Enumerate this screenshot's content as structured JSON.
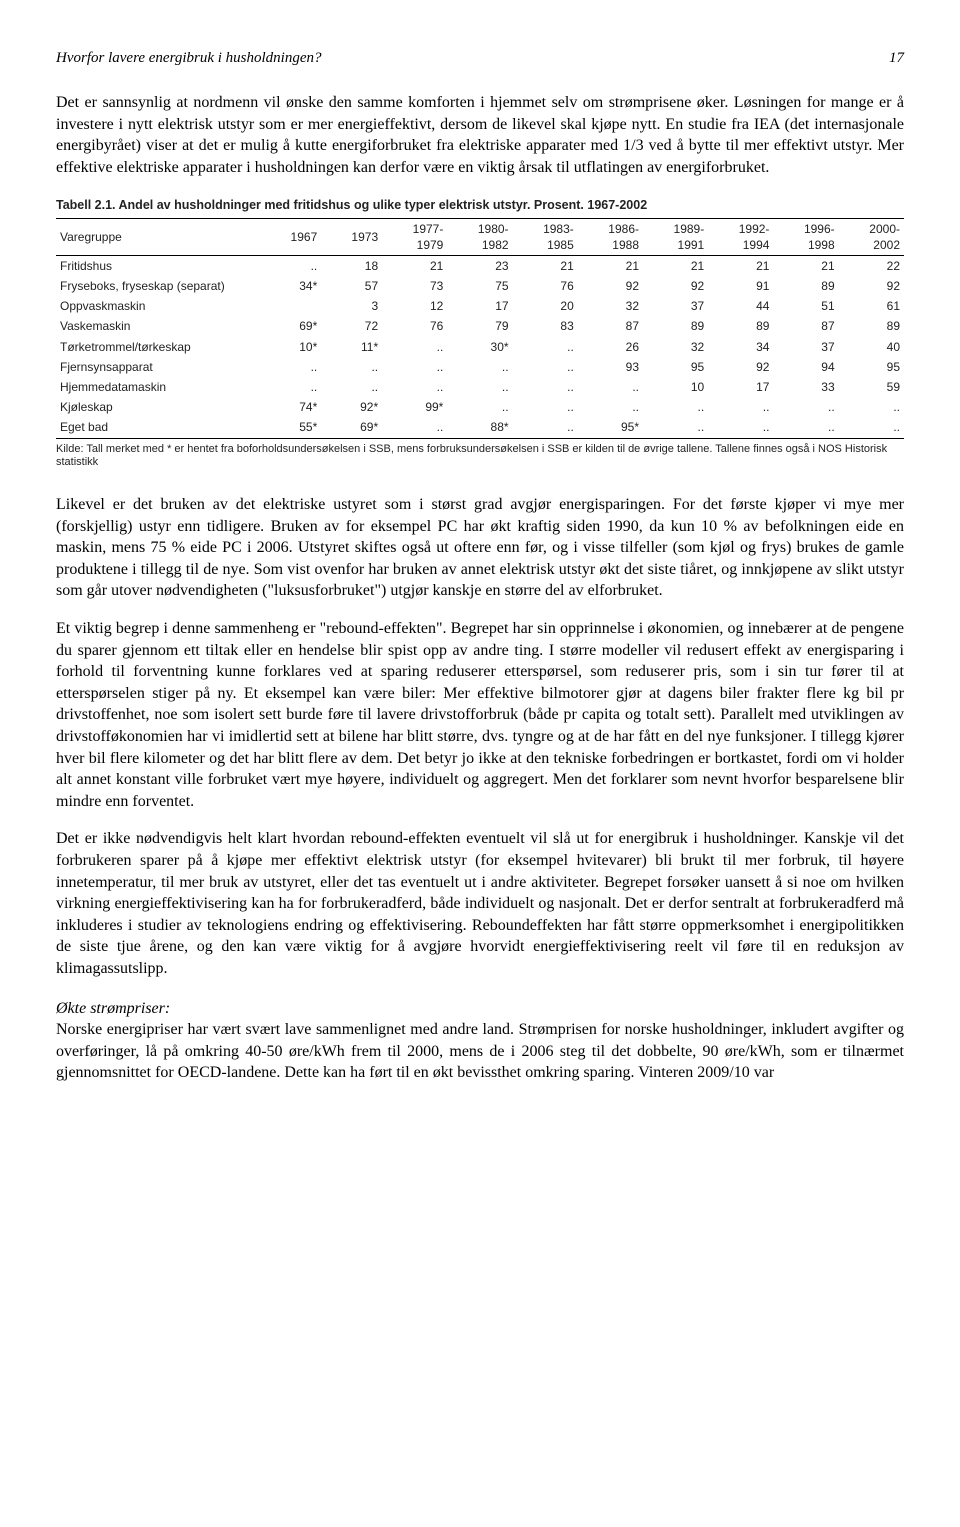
{
  "header": {
    "running_title": "Hvorfor lavere energibruk i husholdningen?",
    "page_number": "17"
  },
  "para1": "Det er sannsynlig at nordmenn vil ønske den samme komforten i hjemmet selv om strømprisene øker. Løsningen for mange er å investere i nytt elektrisk utstyr som er mer energieffektivt, dersom de likevel skal kjøpe nytt. En studie fra IEA (det internasjonale energibyrået) viser at det er mulig å kutte energiforbruket fra elektriske apparater med 1/3 ved å bytte til mer effektivt utstyr. Mer effektive elektriske apparater i husholdningen kan derfor være en viktig årsak til utflatingen av energiforbruket.",
  "table": {
    "title": "Tabell 2.1.    Andel av husholdninger med fritidshus og ulike typer elektrisk utstyr. Prosent. 1967-2002",
    "columns": [
      "Varegruppe",
      "1967",
      "1973",
      "1977-\n1979",
      "1980-\n1982",
      "1983-\n1985",
      "1986-\n1988",
      "1989-\n1991",
      "1992-\n1994",
      "1996-\n1998",
      "2000-\n2002"
    ],
    "rows": [
      [
        "Fritidshus",
        "..",
        "18",
        "21",
        "23",
        "21",
        "21",
        "21",
        "21",
        "21",
        "22"
      ],
      [
        "Fryseboks, fryseskap (separat)",
        "34*",
        "57",
        "73",
        "75",
        "76",
        "92",
        "92",
        "91",
        "89",
        "92"
      ],
      [
        "Oppvaskmaskin",
        "",
        "3",
        "12",
        "17",
        "20",
        "32",
        "37",
        "44",
        "51",
        "61"
      ],
      [
        "Vaskemaskin",
        "69*",
        "72",
        "76",
        "79",
        "83",
        "87",
        "89",
        "89",
        "87",
        "89"
      ],
      [
        "Tørketrommel/tørkeskap",
        "10*",
        "11*",
        "..",
        "30*",
        "..",
        "26",
        "32",
        "34",
        "37",
        "40"
      ],
      [
        "Fjernsynsapparat",
        "..",
        "..",
        "..",
        "..",
        "..",
        "93",
        "95",
        "92",
        "94",
        "95"
      ],
      [
        "Hjemmedatamaskin",
        "..",
        "..",
        "..",
        "..",
        "..",
        "..",
        "10",
        "17",
        "33",
        "59"
      ],
      [
        "Kjøleskap",
        "74*",
        "92*",
        "99*",
        "..",
        "..",
        "..",
        "..",
        "..",
        "..",
        ".."
      ],
      [
        "Eget bad",
        "55*",
        "69*",
        "..",
        "88*",
        "..",
        "95*",
        "..",
        "..",
        "..",
        ".."
      ]
    ],
    "source": "Kilde: Tall merket med * er hentet fra boforholdsundersøkelsen i SSB, mens forbruksundersøkelsen i SSB er kilden til de øvrige tallene. Tallene finnes også i NOS Historisk statistikk",
    "col_widths": [
      "180px",
      "48px",
      "48px",
      "52px",
      "52px",
      "52px",
      "52px",
      "52px",
      "52px",
      "52px",
      "52px"
    ],
    "border_color": "#000000",
    "font_size_pt": 9,
    "background_color": "#ffffff"
  },
  "para2": "Likevel er det bruken av det elektriske ustyret som i størst grad avgjør energisparingen. For det første kjøper vi mye mer (forskjellig) ustyr enn tidligere. Bruken av for eksempel PC har økt kraftig siden 1990, da kun 10 % av befolkningen eide en maskin, mens 75 % eide PC i 2006. Utstyret skiftes også ut oftere enn før, og i visse tilfeller (som kjøl og frys) brukes de gamle produktene i tillegg til de nye. Som vist ovenfor har bruken av annet elektrisk utstyr økt det siste tiåret, og innkjøpene av slikt utstyr som går utover nødvendigheten (\"luksusforbruket\") utgjør kanskje en større del av elforbruket.",
  "para3": "Et viktig begrep i denne sammenheng er \"rebound-effekten\". Begrepet har sin opprinnelse i økonomien, og innebærer at de pengene du sparer gjennom ett tiltak eller en hendelse blir spist opp av andre ting. I større modeller vil redusert effekt av energisparing i forhold til forventning kunne forklares ved at sparing reduserer etterspørsel, som reduserer pris, som i sin tur fører til at etterspørselen stiger på ny. Et eksempel kan være biler: Mer effektive bilmotorer gjør at dagens biler frakter flere kg bil pr drivstoffenhet, noe som isolert sett burde føre til lavere drivstofforbruk (både pr capita og totalt sett). Parallelt med utviklingen av drivstofføkonomien har vi imidlertid sett at bilene har blitt større, dvs. tyngre og at de har fått en del nye funksjoner. I tillegg kjører hver bil flere kilometer og det har blitt flere av dem. Det betyr jo ikke at den tekniske forbedringen er bortkastet, fordi om vi holder alt annet konstant ville forbruket vært mye høyere, individuelt og aggregert. Men det forklarer som nevnt hvorfor besparelsene blir mindre enn forventet.",
  "para4": "Det er ikke nødvendigvis helt klart hvordan rebound-effekten eventuelt vil slå ut for energibruk i husholdninger. Kanskje vil det forbrukeren sparer på å kjøpe mer effektivt elektrisk utstyr (for eksempel hvitevarer) bli brukt til mer forbruk, til høyere innetemperatur, til mer bruk av utstyret, eller det tas eventuelt ut i andre aktiviteter. Begrepet forsøker uansett å si noe om hvilken virkning energieffektivisering kan ha for forbrukeradferd, både individuelt og nasjonalt. Det er derfor sentralt at forbrukeradferd må inkluderes i studier av teknologiens endring og effektivisering. Reboundeffekten har fått større oppmerksomhet i energipolitikken de siste tjue årene, og den kan være viktig for å avgjøre hvorvidt energieffektivisering reelt vil føre til en reduksjon av klimagassutslipp.",
  "section_head": "Økte strømpriser:",
  "para5": "Norske energipriser har vært svært lave sammenlignet med andre land. Strømprisen for norske husholdninger, inkludert avgifter og overføringer, lå på omkring 40-50 øre/kWh frem til 2000, mens de i 2006 steg til det dobbelte, 90 øre/kWh, som er tilnærmet gjennomsnittet for OECD-landene. Dette kan ha ført til en økt bevissthet omkring sparing. Vinteren 2009/10 var"
}
